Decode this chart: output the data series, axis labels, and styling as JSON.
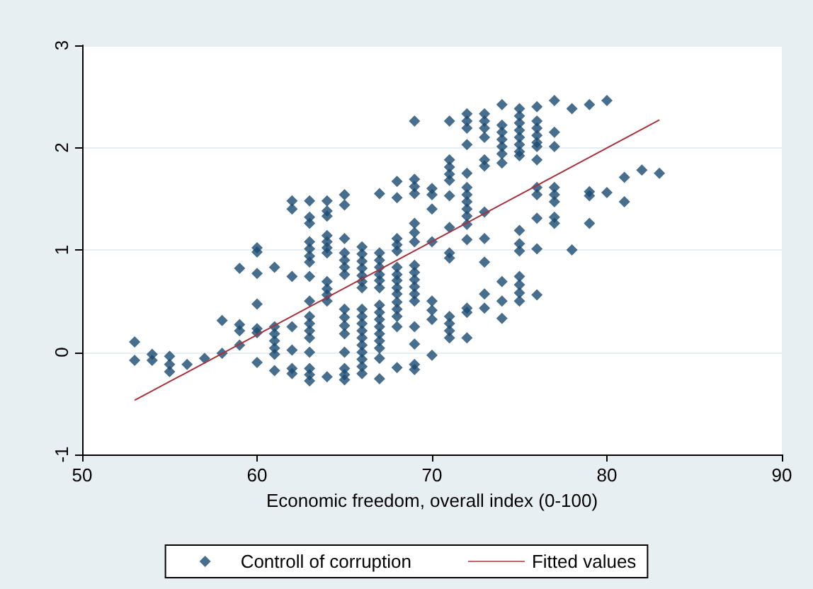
{
  "chart_data": {
    "type": "scatter",
    "xlabel": "Economic freedom, overall index (0-100)",
    "xlim": [
      50,
      90
    ],
    "xticks": [
      50,
      60,
      70,
      80,
      90
    ],
    "ylim": [
      -1,
      3
    ],
    "yticks": [
      -1,
      0,
      1,
      2,
      3
    ],
    "grid": "y",
    "legend": "bottom",
    "marker": "diamond",
    "series": [
      {
        "name": "Controll of corruption",
        "color": "#1a4a72",
        "x": [
          53,
          53,
          54,
          54,
          55,
          55,
          55,
          56,
          57,
          58,
          58,
          59,
          59,
          59,
          59,
          60,
          60,
          60,
          60,
          60,
          60,
          60,
          61,
          61,
          61,
          61,
          61,
          61,
          61,
          62,
          62,
          62,
          62,
          62,
          62,
          62,
          63,
          63,
          63,
          63,
          63,
          63,
          63,
          63,
          63,
          63,
          63,
          63,
          63,
          63,
          63,
          63,
          63,
          64,
          64,
          64,
          64,
          64,
          64,
          64,
          64,
          64,
          64,
          64,
          64,
          65,
          65,
          65,
          65,
          65,
          65,
          65,
          65,
          65,
          65,
          65,
          65,
          65,
          65,
          65,
          66,
          66,
          66,
          66,
          66,
          66,
          66,
          66,
          66,
          66,
          66,
          66,
          66,
          66,
          66,
          66,
          66,
          67,
          67,
          67,
          67,
          67,
          67,
          67,
          67,
          67,
          67,
          67,
          67,
          67,
          67,
          67,
          67,
          68,
          68,
          68,
          68,
          68,
          68,
          68,
          68,
          68,
          68,
          68,
          68,
          68,
          68,
          68,
          69,
          69,
          69,
          69,
          69,
          69,
          69,
          69,
          69,
          69,
          69,
          69,
          69,
          69,
          69,
          69,
          69,
          70,
          70,
          70,
          70,
          70,
          70,
          70,
          70,
          71,
          71,
          71,
          71,
          71,
          71,
          71,
          71,
          71,
          71,
          71,
          71,
          71,
          72,
          72,
          72,
          72,
          72,
          72,
          72,
          72,
          72,
          72,
          72,
          72,
          72,
          72,
          72,
          73,
          73,
          73,
          73,
          73,
          73,
          73,
          73,
          73,
          73,
          73,
          74,
          74,
          74,
          74,
          74,
          74,
          74,
          74,
          74,
          74,
          75,
          75,
          75,
          75,
          75,
          75,
          75,
          75,
          75,
          75,
          75,
          75,
          75,
          75,
          75,
          76,
          76,
          76,
          76,
          76,
          76,
          76,
          76,
          76,
          76,
          76,
          76,
          77,
          77,
          77,
          77,
          77,
          77,
          77,
          77,
          78,
          78,
          79,
          79,
          79,
          79,
          80,
          80,
          81,
          81,
          82,
          83
        ],
        "values": [
          0.1,
          -0.08,
          -0.02,
          -0.08,
          -0.04,
          -0.12,
          -0.19,
          -0.12,
          -0.06,
          0.31,
          -0.01,
          0.82,
          0.27,
          0.21,
          0.07,
          1.02,
          0.98,
          0.77,
          0.47,
          0.23,
          0.19,
          -0.1,
          0.83,
          0.25,
          0.18,
          0.11,
          0.04,
          -0.02,
          -0.18,
          1.48,
          1.4,
          0.74,
          0.25,
          0.02,
          -0.16,
          -0.21,
          1.48,
          1.32,
          1.26,
          1.08,
          1.01,
          0.94,
          0.88,
          0.74,
          0.5,
          0.35,
          0.28,
          0.21,
          0.14,
          0,
          -0.16,
          -0.22,
          -0.28,
          1.48,
          1.38,
          1.33,
          1.14,
          1.08,
          1.02,
          0.97,
          0.69,
          0.62,
          0.56,
          0.5,
          -0.24,
          1.54,
          1.44,
          1.11,
          0.97,
          0.9,
          0.83,
          0.76,
          0.42,
          0.34,
          0.26,
          0.18,
          0,
          -0.16,
          -0.22,
          -0.27,
          1.03,
          0.96,
          0.89,
          0.82,
          0.75,
          0.69,
          0.63,
          0.42,
          0.35,
          0.28,
          0.21,
          0.14,
          0.07,
          0,
          -0.07,
          -0.14,
          -0.21,
          1.55,
          0.97,
          0.9,
          0.83,
          0.76,
          0.7,
          0.63,
          0.46,
          0.39,
          0.32,
          0.25,
          0.18,
          0.11,
          0.04,
          -0.06,
          -0.26,
          1.67,
          1.51,
          1.11,
          1.05,
          0.99,
          0.83,
          0.76,
          0.7,
          0.63,
          0.57,
          0.49,
          0.42,
          0.35,
          0.25,
          -0.15,
          2.26,
          1.69,
          1.62,
          1.55,
          1.26,
          1.17,
          1.08,
          0.85,
          0.78,
          0.71,
          0.64,
          0.57,
          0.5,
          0.25,
          0.08,
          -0.12,
          -0.17,
          1.6,
          1.54,
          1.4,
          1.08,
          0.5,
          0.41,
          0.32,
          -0.03,
          2.26,
          1.88,
          1.81,
          1.74,
          1.68,
          1.53,
          1.22,
          0.97,
          0.92,
          0.35,
          0.28,
          0.21,
          0.14,
          2.33,
          2.26,
          2.19,
          2.03,
          1.75,
          1.61,
          1.54,
          1.47,
          1.4,
          1.33,
          1.25,
          1.1,
          0.43,
          0.39,
          0.14,
          2.33,
          2.26,
          2.19,
          2.1,
          1.88,
          1.82,
          1.37,
          1.11,
          0.88,
          0.57,
          0.43,
          2.42,
          2.22,
          2.15,
          2.08,
          2.01,
          1.94,
          1.85,
          0.69,
          0.5,
          0.33,
          2.38,
          2.31,
          2.24,
          2.17,
          2.1,
          2.03,
          1.96,
          1.92,
          1.19,
          1.06,
          0.99,
          0.74,
          0.66,
          0.58,
          0.5,
          2.4,
          2.26,
          2.19,
          2.12,
          2.05,
          2.01,
          1.88,
          1.61,
          1.54,
          1.31,
          1.01,
          0.56,
          2.46,
          2.15,
          2.01,
          1.61,
          1.54,
          1.47,
          1.32,
          1.26,
          2.38,
          1.0,
          2.42,
          1.57,
          1.53,
          1.26,
          2.46,
          1.56,
          1.71,
          1.47,
          1.78,
          1.75
        ]
      },
      {
        "name": "Fitted values",
        "type": "line",
        "color": "#a8323c",
        "marker": "none",
        "x": [
          53,
          83
        ],
        "values": [
          -0.47,
          2.27
        ]
      }
    ]
  }
}
